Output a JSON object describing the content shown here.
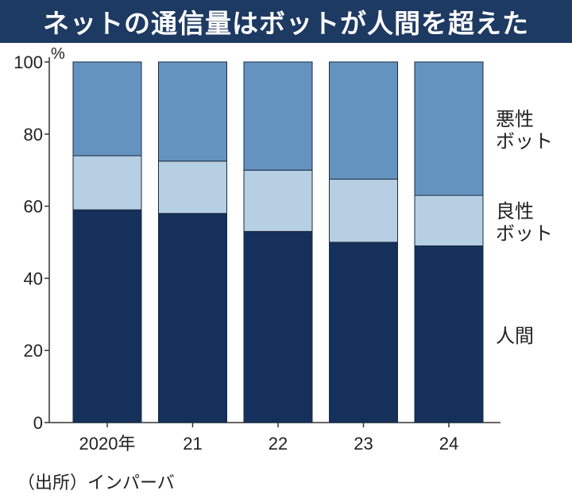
{
  "title": "ネットの通信量はボットが人間を超えた",
  "source": "（出所）インパーバ",
  "colors": {
    "title_bg": "#1d3a63",
    "human": "#15305a",
    "good_bot": "#b7cfe3",
    "bad_bot": "#6593bf",
    "axis": "#333333"
  },
  "chart_data": {
    "type": "bar",
    "stacked": true,
    "unit": "%",
    "categories": [
      "2020年",
      "21",
      "22",
      "23",
      "24"
    ],
    "ylim": [
      0,
      100
    ],
    "yticks": [
      0,
      20,
      40,
      60,
      80,
      100
    ],
    "series": [
      {
        "name": "人間",
        "values": [
          59,
          58,
          53,
          50,
          49
        ]
      },
      {
        "name": "良性ボット",
        "values": [
          15,
          14.5,
          17,
          17.5,
          14
        ]
      },
      {
        "name": "悪性ボット",
        "values": [
          26,
          27.5,
          30,
          32.5,
          37
        ]
      }
    ],
    "series_display": [
      {
        "line1": "人間"
      },
      {
        "line1": "良性",
        "line2": "ボット"
      },
      {
        "line1": "悪性",
        "line2": "ボット"
      }
    ]
  }
}
